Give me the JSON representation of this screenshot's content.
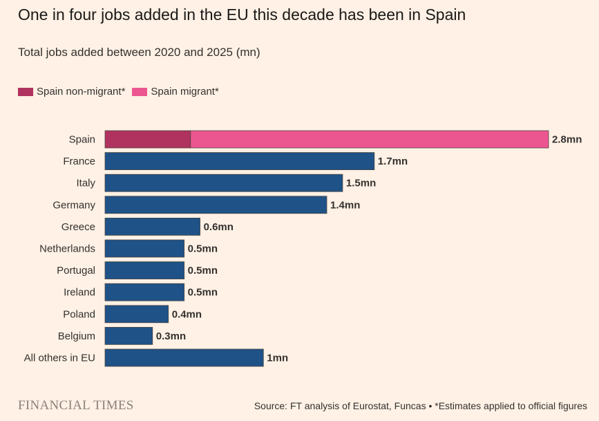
{
  "title": "One in four jobs added in the EU this decade has been in Spain",
  "subtitle": "Total jobs added between 2020 and 2025 (mn)",
  "footer": {
    "logo": "FINANCIAL TIMES",
    "source": "Source: FT analysis of Eurostat, Funcas • *Estimates applied to official figures"
  },
  "colors": {
    "spain_non_migrant": "#b0325f",
    "spain_migrant": "#ec5690",
    "other": "#1f5287",
    "background": "#fff1e5"
  },
  "chart_data": {
    "type": "bar",
    "orientation": "horizontal",
    "stacked": true,
    "title": "One in four jobs added in the EU this decade has been in Spain",
    "subtitle": "Total jobs added between 2020 and 2025 (mn)",
    "legend_position": "top-left",
    "grid": false,
    "unit_suffix": "mn",
    "xlim": [
      0,
      2.8
    ],
    "legend": [
      {
        "name": "Spain non-migrant*",
        "color": "#b0325f"
      },
      {
        "name": "Spain migrant*",
        "color": "#ec5690"
      }
    ],
    "categories": [
      "Spain",
      "France",
      "Italy",
      "Germany",
      "Greece",
      "Netherlands",
      "Portugal",
      "Ireland",
      "Poland",
      "Belgium",
      "All others in EU"
    ],
    "bars": [
      {
        "category": "Spain",
        "label": "2.8mn",
        "segments": [
          {
            "series": "Spain non-migrant*",
            "value": 0.54,
            "color": "#b0325f"
          },
          {
            "series": "Spain migrant*",
            "value": 2.26,
            "color": "#ec5690"
          }
        ]
      },
      {
        "category": "France",
        "label": "1.7mn",
        "segments": [
          {
            "value": 1.7,
            "color": "#1f5287"
          }
        ]
      },
      {
        "category": "Italy",
        "label": "1.5mn",
        "segments": [
          {
            "value": 1.5,
            "color": "#1f5287"
          }
        ]
      },
      {
        "category": "Germany",
        "label": "1.4mn",
        "segments": [
          {
            "value": 1.4,
            "color": "#1f5287"
          }
        ]
      },
      {
        "category": "Greece",
        "label": "0.6mn",
        "segments": [
          {
            "value": 0.6,
            "color": "#1f5287"
          }
        ]
      },
      {
        "category": "Netherlands",
        "label": "0.5mn",
        "segments": [
          {
            "value": 0.5,
            "color": "#1f5287"
          }
        ]
      },
      {
        "category": "Portugal",
        "label": "0.5mn",
        "segments": [
          {
            "value": 0.5,
            "color": "#1f5287"
          }
        ]
      },
      {
        "category": "Ireland",
        "label": "0.5mn",
        "segments": [
          {
            "value": 0.5,
            "color": "#1f5287"
          }
        ]
      },
      {
        "category": "Poland",
        "label": "0.4mn",
        "segments": [
          {
            "value": 0.4,
            "color": "#1f5287"
          }
        ]
      },
      {
        "category": "Belgium",
        "label": "0.3mn",
        "segments": [
          {
            "value": 0.3,
            "color": "#1f5287"
          }
        ]
      },
      {
        "category": "All others in EU",
        "label": "1mn",
        "segments": [
          {
            "value": 1.0,
            "color": "#1f5287"
          }
        ]
      }
    ]
  }
}
